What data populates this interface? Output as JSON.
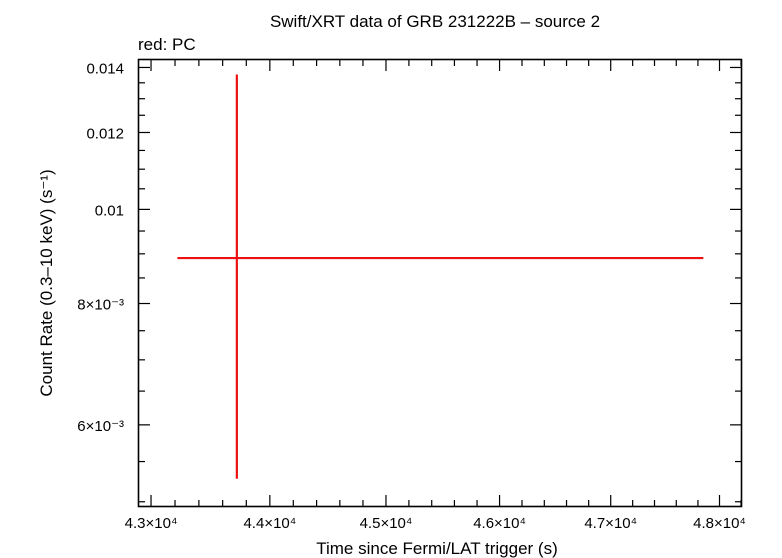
{
  "chart_data": {
    "type": "scatter",
    "title": "Swift/XRT data of GRB 231222B – source 2",
    "legend_text": "red: PC",
    "xlabel": "Time since Fermi/LAT trigger (s)",
    "ylabel": "Count Rate (0.3–10 keV) (s⁻¹)",
    "x_scale": "log",
    "y_scale": "log",
    "xlim": [
      42900,
      48200
    ],
    "ylim": [
      0.00495,
      0.01425
    ],
    "x_ticks": [
      {
        "value": 43000,
        "label": "4.3×10⁴"
      },
      {
        "value": 44000,
        "label": "4.4×10⁴"
      },
      {
        "value": 45000,
        "label": "4.5×10⁴"
      },
      {
        "value": 46000,
        "label": "4.6×10⁴"
      },
      {
        "value": 47000,
        "label": "4.7×10⁴"
      },
      {
        "value": 48000,
        "label": "4.8×10⁴"
      }
    ],
    "y_ticks": [
      {
        "value": 0.006,
        "label": "6×10⁻³"
      },
      {
        "value": 0.008,
        "label": "8×10⁻³"
      },
      {
        "value": 0.01,
        "label": "0.01"
      },
      {
        "value": 0.012,
        "label": "0.012"
      },
      {
        "value": 0.014,
        "label": "0.014"
      }
    ],
    "series": [
      {
        "color": "#ee1111",
        "points": [
          {
            "x": 43720,
            "x_low": 43220,
            "x_high": 47850,
            "y": 0.00891,
            "y_low": 0.00528,
            "y_high": 0.01377
          }
        ]
      }
    ]
  }
}
